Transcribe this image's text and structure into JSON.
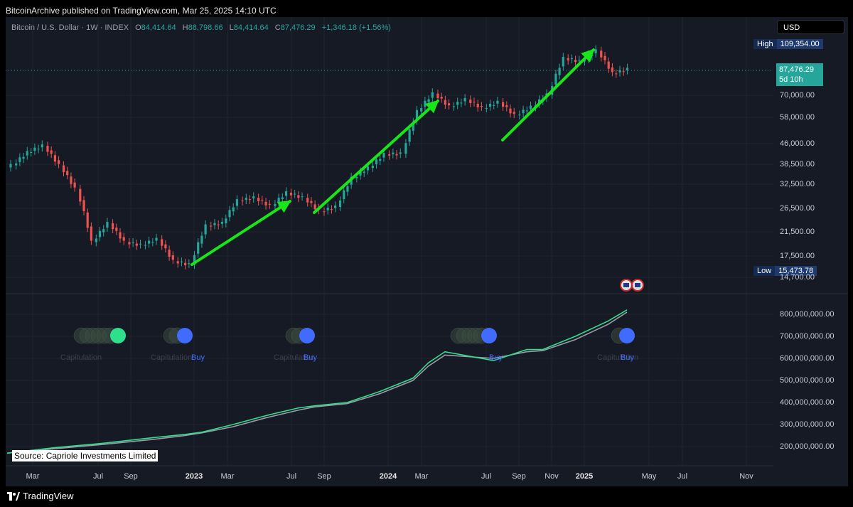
{
  "header": {
    "published": "BitcoinArchive published on TradingView.com, Mar 25, 2025 14:10 UTC"
  },
  "legend": {
    "symbol": "Bitcoin / U.S. Dollar · 1W · INDEX",
    "o_label": "O",
    "o": "84,414.64",
    "h_label": "H",
    "h": "88,798.66",
    "l_label": "L",
    "l": "84,414.64",
    "c_label": "C",
    "c": "87,476.29",
    "change": "+1,346.18 (+1.56%)"
  },
  "currency": "USD",
  "price_axis": {
    "high_label": "High",
    "high_value": "109,354.00",
    "last_price": "87,476.29",
    "countdown": "5d 10h",
    "low_label": "Low",
    "low_value": "15,473.78",
    "ticks": [
      "70,000.00",
      "58,000.00",
      "46,000.00",
      "38,500.00",
      "32,500.00",
      "26,500.00",
      "21,500.00",
      "17,500.00",
      "14,700.00"
    ]
  },
  "indicator_axis": {
    "ticks": [
      "800,000,000.00",
      "700,000,000.00",
      "600,000,000.00",
      "500,000,000.00",
      "400,000,000.00",
      "300,000,000.00",
      "200,000,000.00"
    ]
  },
  "time_axis": [
    {
      "label": "Mar",
      "bold": false
    },
    {
      "label": "Jul",
      "bold": false
    },
    {
      "label": "Sep",
      "bold": false
    },
    {
      "label": "2023",
      "bold": true
    },
    {
      "label": "Mar",
      "bold": false
    },
    {
      "label": "Jul",
      "bold": false
    },
    {
      "label": "Sep",
      "bold": false
    },
    {
      "label": "2024",
      "bold": true
    },
    {
      "label": "Mar",
      "bold": false
    },
    {
      "label": "Jul",
      "bold": false
    },
    {
      "label": "Sep",
      "bold": false
    },
    {
      "label": "Nov",
      "bold": false
    },
    {
      "label": "2025",
      "bold": true
    },
    {
      "label": "May",
      "bold": false
    },
    {
      "label": "Jul",
      "bold": false
    },
    {
      "label": "Nov",
      "bold": false
    }
  ],
  "signals": [
    {
      "cap": "Capitulation",
      "buy": ""
    },
    {
      "cap": "Capitulation",
      "buy": "Buy"
    },
    {
      "cap": "Capitulation",
      "buy": "Buy"
    },
    {
      "cap": "",
      "buy": "Buy"
    },
    {
      "cap": "Capitulation",
      "buy": "Buy"
    }
  ],
  "source": "Source: Capriole Investments Limited",
  "footer": {
    "brand": "TradingView"
  },
  "colors": {
    "up": "#26a69a",
    "down": "#ef5350",
    "arrow": "#19e619",
    "buy": "#3f6cff",
    "fast": "#2ee08c",
    "slow": "#9b9ba6",
    "bg": "#161a25"
  },
  "chart_data": [
    {
      "type": "candlestick",
      "title": "Bitcoin / U.S. Dollar · 1W · INDEX",
      "yscale": "log",
      "ylim": [
        14700,
        109354
      ],
      "x": [
        "2022-01",
        "2022-02",
        "2022-03",
        "2022-04",
        "2022-05",
        "2022-06",
        "2022-07",
        "2022-08",
        "2022-09",
        "2022-10",
        "2022-11",
        "2022-12",
        "2023-01",
        "2023-02",
        "2023-03",
        "2023-04",
        "2023-05",
        "2023-06",
        "2023-07",
        "2023-08",
        "2023-09",
        "2023-10",
        "2023-11",
        "2023-12",
        "2024-01",
        "2024-02",
        "2024-03",
        "2024-04",
        "2024-05",
        "2024-06",
        "2024-07",
        "2024-08",
        "2024-09",
        "2024-10",
        "2024-11",
        "2024-12",
        "2025-01",
        "2025-02",
        "2025-03"
      ],
      "close": [
        38500,
        43000,
        45500,
        38500,
        31500,
        20000,
        23500,
        20000,
        19500,
        20500,
        17000,
        16500,
        23000,
        23500,
        28500,
        29200,
        27200,
        30500,
        29200,
        26000,
        27000,
        34500,
        37700,
        42300,
        42500,
        61000,
        71000,
        63500,
        67500,
        62700,
        66000,
        59000,
        63300,
        70300,
        96000,
        93500,
        102400,
        84300,
        87476
      ],
      "high_marked": 109354,
      "low_marked": 15473.78
    },
    {
      "type": "line",
      "series": [
        {
          "values": [
            170000000,
            195000000,
            215000000,
            240000000,
            255000000,
            265000000,
            300000000,
            340000000,
            375000000,
            385000000,
            400000000,
            450000000,
            510000000,
            580000000,
            630000000,
            590000000,
            640000000,
            640000000,
            700000000,
            770000000,
            820000000
          ]
        },
        {
          "values": [
            170000000,
            190000000,
            210000000,
            232000000,
            250000000,
            262000000,
            290000000,
            330000000,
            365000000,
            380000000,
            395000000,
            440000000,
            500000000,
            565000000,
            615000000,
            600000000,
            630000000,
            635000000,
            685000000,
            755000000,
            810000000
          ]
        }
      ],
      "x": [
        "2022-01",
        "2022-04",
        "2022-07",
        "2022-10",
        "2022-12",
        "2023-01",
        "2023-03",
        "2023-05",
        "2023-07",
        "2023-08",
        "2023-10",
        "2023-12",
        "2024-02",
        "2024-03",
        "2024-04",
        "2024-07",
        "2024-09",
        "2024-10",
        "2024-12",
        "2025-02",
        "2025-03"
      ],
      "ylim": [
        170000000,
        850000000
      ]
    }
  ]
}
